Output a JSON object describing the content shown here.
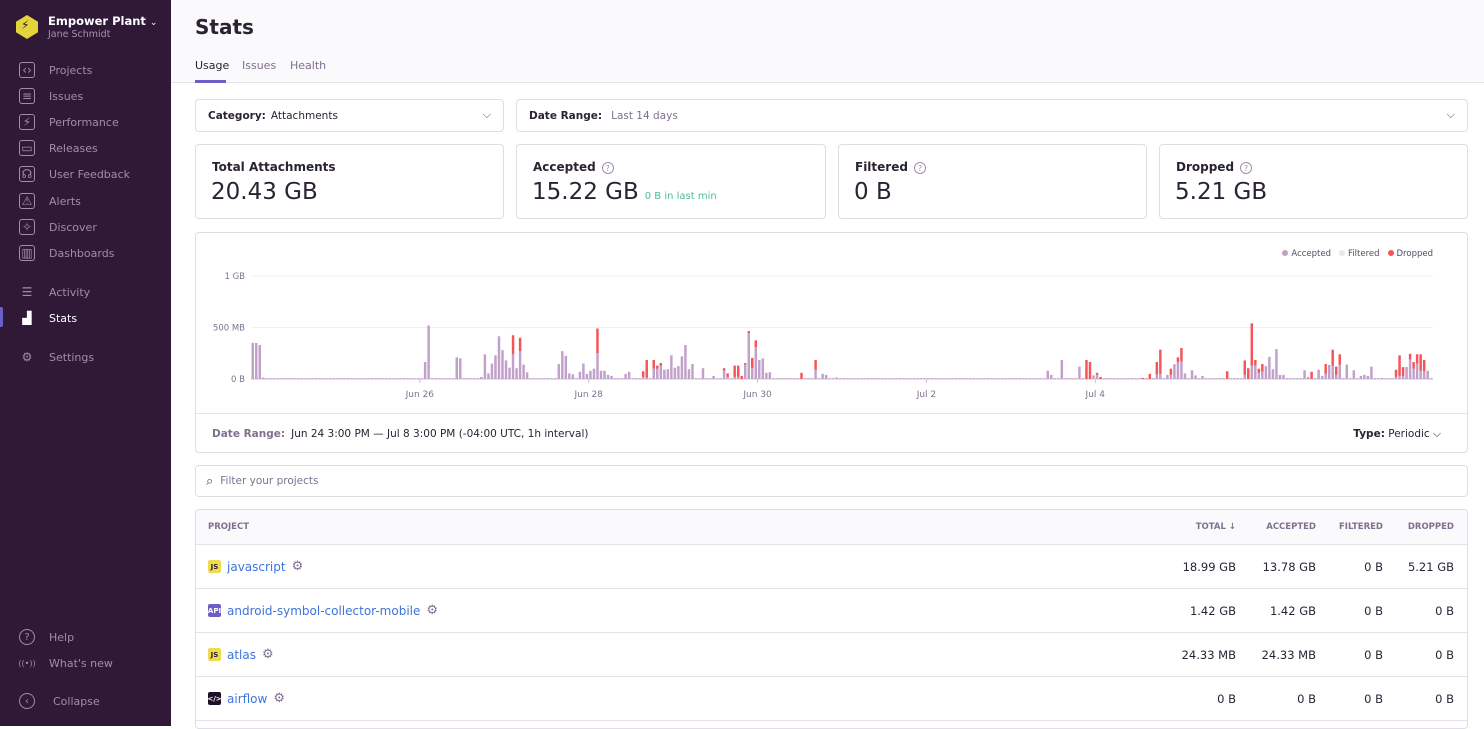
{
  "sidebar": {
    "org_name": "Empower Plant",
    "user_name": "Jane Schmidt",
    "items": [
      {
        "label": "Projects",
        "icon": "projects-icon",
        "glyph": "‹›"
      },
      {
        "label": "Issues",
        "icon": "issues-icon",
        "glyph": "≡"
      },
      {
        "label": "Performance",
        "icon": "performance-icon",
        "glyph": "⚡"
      },
      {
        "label": "Releases",
        "icon": "releases-icon",
        "glyph": "▭"
      },
      {
        "label": "User Feedback",
        "icon": "user-feedback-icon",
        "glyph": "☊"
      },
      {
        "label": "Alerts",
        "icon": "alerts-icon",
        "glyph": "⚠"
      },
      {
        "label": "Discover",
        "icon": "discover-icon",
        "glyph": "✧"
      },
      {
        "label": "Dashboards",
        "icon": "dashboards-icon",
        "glyph": "▥"
      },
      {
        "label": "Activity",
        "icon": "activity-icon",
        "glyph": "☰"
      },
      {
        "label": "Stats",
        "icon": "stats-icon",
        "glyph": "▟",
        "active": true
      },
      {
        "label": "Settings",
        "icon": "settings-icon",
        "glyph": "⚙"
      }
    ],
    "bottom": [
      {
        "label": "Help",
        "icon": "help-icon",
        "glyph": "?"
      },
      {
        "label": "What's new",
        "icon": "broadcast-icon",
        "glyph": "((•))"
      },
      {
        "label": "Collapse",
        "icon": "collapse-icon",
        "glyph": "‹"
      }
    ]
  },
  "header": {
    "title": "Stats",
    "tabs": [
      "Usage",
      "Issues",
      "Health"
    ],
    "active_tab": "Usage"
  },
  "filters": {
    "category_label": "Category:",
    "category_value": "Attachments",
    "date_label": "Date Range:",
    "date_value": "Last 14 days"
  },
  "cards": [
    {
      "label": "Total Attachments",
      "value": "20.43 GB"
    },
    {
      "label": "Accepted",
      "value": "15.22 GB",
      "sub": "0 B in last min"
    },
    {
      "label": "Filtered",
      "value": "0 B"
    },
    {
      "label": "Dropped",
      "value": "5.21 GB"
    }
  ],
  "colors": {
    "accent": "#6c5fc7",
    "accepted": "#c1a0ca",
    "filtered": "#e9e6ee",
    "dropped": "#f55459",
    "sidebar": "#2f1937",
    "link": "#3d74db"
  },
  "chart_data": {
    "type": "bar",
    "stacked": true,
    "interval": "1h",
    "grid": true,
    "legend_position": "top-right",
    "start": "Jun 24 15:00",
    "end": "Jul 8 15:00",
    "yticks": [
      "0 B",
      "500 MB",
      "1 GB"
    ],
    "ylim_mb": [
      0,
      1000
    ],
    "xticks": [
      "Jun 26",
      "Jun 28",
      "Jun 30",
      "Jul 2",
      "Jul 4"
    ],
    "series": [
      {
        "name": "Accepted"
      },
      {
        "name": "Filtered"
      },
      {
        "name": "Dropped"
      }
    ],
    "other_hours_accepted_mb": 8,
    "points_mb": [
      [
        "Jun 24 15:00",
        350,
        0
      ],
      [
        "Jun 24 16:00",
        350,
        0
      ],
      [
        "Jun 24 17:00",
        330,
        0
      ],
      [
        "Jun 24 18:00",
        15,
        0
      ],
      [
        "Jun 26 16:00",
        165,
        0
      ],
      [
        "Jun 26 17:00",
        520,
        0
      ],
      [
        "Jun 27 01:00",
        210,
        0
      ],
      [
        "Jun 27 02:00",
        200,
        0
      ],
      [
        "Jun 27 08:00",
        20,
        0
      ],
      [
        "Jun 27 09:00",
        240,
        0
      ],
      [
        "Jun 27 10:00",
        55,
        0
      ],
      [
        "Jun 27 11:00",
        150,
        0
      ],
      [
        "Jun 27 12:00",
        230,
        0
      ],
      [
        "Jun 27 13:00",
        415,
        0
      ],
      [
        "Jun 27 14:00",
        280,
        0
      ],
      [
        "Jun 27 15:00",
        180,
        0
      ],
      [
        "Jun 27 16:00",
        110,
        0
      ],
      [
        "Jun 27 17:00",
        240,
        185
      ],
      [
        "Jun 27 18:00",
        105,
        0
      ],
      [
        "Jun 27 19:00",
        270,
        130
      ],
      [
        "Jun 27 20:00",
        140,
        0
      ],
      [
        "Jun 27 21:00",
        65,
        0
      ],
      [
        "Jun 28 06:00",
        145,
        0
      ],
      [
        "Jun 28 07:00",
        270,
        0
      ],
      [
        "Jun 28 08:00",
        225,
        0
      ],
      [
        "Jun 28 09:00",
        55,
        0
      ],
      [
        "Jun 28 10:00",
        45,
        0
      ],
      [
        "Jun 28 12:00",
        70,
        0
      ],
      [
        "Jun 28 13:00",
        150,
        0
      ],
      [
        "Jun 28 14:00",
        50,
        0
      ],
      [
        "Jun 28 15:00",
        80,
        0
      ],
      [
        "Jun 28 16:00",
        100,
        0
      ],
      [
        "Jun 28 17:00",
        250,
        240
      ],
      [
        "Jun 28 18:00",
        80,
        0
      ],
      [
        "Jun 28 19:00",
        80,
        0
      ],
      [
        "Jun 28 20:00",
        40,
        0
      ],
      [
        "Jun 28 21:00",
        30,
        0
      ],
      [
        "Jun 29 01:00",
        50,
        0
      ],
      [
        "Jun 29 02:00",
        70,
        0
      ],
      [
        "Jun 29 06:00",
        20,
        55
      ],
      [
        "Jun 29 07:00",
        15,
        170
      ],
      [
        "Jun 29 09:00",
        100,
        85
      ],
      [
        "Jun 29 10:00",
        100,
        30
      ],
      [
        "Jun 29 11:00",
        130,
        25
      ],
      [
        "Jun 29 12:00",
        90,
        0
      ],
      [
        "Jun 29 13:00",
        95,
        0
      ],
      [
        "Jun 29 14:00",
        230,
        0
      ],
      [
        "Jun 29 15:00",
        110,
        0
      ],
      [
        "Jun 29 16:00",
        125,
        0
      ],
      [
        "Jun 29 17:00",
        220,
        0
      ],
      [
        "Jun 29 18:00",
        330,
        0
      ],
      [
        "Jun 29 19:00",
        95,
        0
      ],
      [
        "Jun 29 20:00",
        145,
        0
      ],
      [
        "Jun 29 23:00",
        105,
        0
      ],
      [
        "Jun 30 02:00",
        30,
        0
      ],
      [
        "Jun 30 05:00",
        80,
        25
      ],
      [
        "Jun 30 06:00",
        20,
        35
      ],
      [
        "Jun 30 08:00",
        20,
        110
      ],
      [
        "Jun 30 09:00",
        20,
        110
      ],
      [
        "Jun 30 10:00",
        0,
        30
      ],
      [
        "Jun 30 11:00",
        140,
        15
      ],
      [
        "Jun 30 12:00",
        445,
        20
      ],
      [
        "Jun 30 13:00",
        105,
        100
      ],
      [
        "Jun 30 14:00",
        310,
        65
      ],
      [
        "Jun 30 15:00",
        185,
        0
      ],
      [
        "Jun 30 16:00",
        200,
        0
      ],
      [
        "Jun 30 17:00",
        60,
        0
      ],
      [
        "Jun 30 18:00",
        65,
        0
      ],
      [
        "Jul 1 03:00",
        0,
        60
      ],
      [
        "Jul 1 07:00",
        90,
        95
      ],
      [
        "Jul 1 09:00",
        50,
        0
      ],
      [
        "Jul 1 10:00",
        40,
        0
      ],
      [
        "Jul 1 13:00",
        15,
        0
      ],
      [
        "Jul 4 01:00",
        80,
        0
      ],
      [
        "Jul 4 02:00",
        40,
        0
      ],
      [
        "Jul 4 05:00",
        185,
        0
      ],
      [
        "Jul 4 10:00",
        120,
        0
      ],
      [
        "Jul 4 12:00",
        0,
        185
      ],
      [
        "Jul 4 13:00",
        0,
        165
      ],
      [
        "Jul 4 14:00",
        35,
        0
      ],
      [
        "Jul 4 15:00",
        40,
        20
      ],
      [
        "Jul 4 16:00",
        0,
        20
      ],
      [
        "Jul 5 04:00",
        0,
        10
      ],
      [
        "Jul 5 06:00",
        0,
        50
      ],
      [
        "Jul 5 08:00",
        45,
        120
      ],
      [
        "Jul 5 09:00",
        50,
        235
      ],
      [
        "Jul 5 11:00",
        40,
        0
      ],
      [
        "Jul 5 12:00",
        40,
        60
      ],
      [
        "Jul 5 13:00",
        130,
        10
      ],
      [
        "Jul 5 14:00",
        165,
        45
      ],
      [
        "Jul 5 15:00",
        170,
        130
      ],
      [
        "Jul 5 16:00",
        55,
        0
      ],
      [
        "Jul 5 18:00",
        85,
        0
      ],
      [
        "Jul 5 19:00",
        35,
        0
      ],
      [
        "Jul 5 21:00",
        30,
        0
      ],
      [
        "Jul 6 04:00",
        0,
        75
      ],
      [
        "Jul 6 09:00",
        40,
        140
      ],
      [
        "Jul 6 10:00",
        0,
        105
      ],
      [
        "Jul 6 11:00",
        130,
        410
      ],
      [
        "Jul 6 12:00",
        130,
        55
      ],
      [
        "Jul 6 13:00",
        60,
        40
      ],
      [
        "Jul 6 14:00",
        70,
        75
      ],
      [
        "Jul 6 15:00",
        125,
        0
      ],
      [
        "Jul 6 16:00",
        215,
        0
      ],
      [
        "Jul 6 17:00",
        95,
        0
      ],
      [
        "Jul 6 18:00",
        290,
        0
      ],
      [
        "Jul 6 19:00",
        40,
        0
      ],
      [
        "Jul 6 20:00",
        40,
        0
      ],
      [
        "Jul 7 02:00",
        85,
        0
      ],
      [
        "Jul 7 03:00",
        20,
        0
      ],
      [
        "Jul 7 04:00",
        0,
        70
      ],
      [
        "Jul 7 06:00",
        90,
        0
      ],
      [
        "Jul 7 07:00",
        30,
        0
      ],
      [
        "Jul 7 08:00",
        50,
        95
      ],
      [
        "Jul 7 09:00",
        130,
        5
      ],
      [
        "Jul 7 10:00",
        130,
        155
      ],
      [
        "Jul 7 11:00",
        40,
        80
      ],
      [
        "Jul 7 12:00",
        140,
        100
      ],
      [
        "Jul 7 14:00",
        140,
        0
      ],
      [
        "Jul 7 16:00",
        85,
        0
      ],
      [
        "Jul 7 18:00",
        30,
        0
      ],
      [
        "Jul 7 19:00",
        40,
        0
      ],
      [
        "Jul 7 20:00",
        30,
        0
      ],
      [
        "Jul 7 21:00",
        120,
        0
      ],
      [
        "Jul 8 00:00",
        10,
        0
      ],
      [
        "Jul 8 04:00",
        20,
        70
      ],
      [
        "Jul 8 05:00",
        30,
        200
      ],
      [
        "Jul 8 06:00",
        30,
        85
      ],
      [
        "Jul 8 07:00",
        110,
        5
      ],
      [
        "Jul 8 08:00",
        190,
        55
      ],
      [
        "Jul 8 09:00",
        100,
        65
      ],
      [
        "Jul 8 10:00",
        150,
        90
      ],
      [
        "Jul 8 11:00",
        80,
        160
      ],
      [
        "Jul 8 12:00",
        75,
        110
      ],
      [
        "Jul 8 13:00",
        80,
        0
      ]
    ]
  },
  "chart_footer": {
    "date_label": "Date Range:",
    "date_value": "Jun 24 3:00 PM — Jul 8 3:00 PM (-04:00 UTC, 1h interval)",
    "type_label": "Type:",
    "type_value": "Periodic"
  },
  "search": {
    "placeholder": "Filter your projects"
  },
  "table": {
    "headers": [
      "PROJECT",
      "TOTAL ↓",
      "ACCEPTED",
      "FILTERED",
      "DROPPED"
    ],
    "rows": [
      {
        "name": "javascript",
        "badge": "JS",
        "total": "18.99 GB",
        "accepted": "13.78 GB",
        "filtered": "0 B",
        "dropped": "5.21 GB"
      },
      {
        "name": "android-symbol-collector-mobile",
        "badge": "API",
        "total": "1.42 GB",
        "accepted": "1.42 GB",
        "filtered": "0 B",
        "dropped": "0 B"
      },
      {
        "name": "atlas",
        "badge": "JS",
        "total": "24.33 MB",
        "accepted": "24.33 MB",
        "filtered": "0 B",
        "dropped": "0 B"
      },
      {
        "name": "airflow",
        "badge": "</>",
        "total": "0 B",
        "accepted": "0 B",
        "filtered": "0 B",
        "dropped": "0 B"
      }
    ]
  }
}
